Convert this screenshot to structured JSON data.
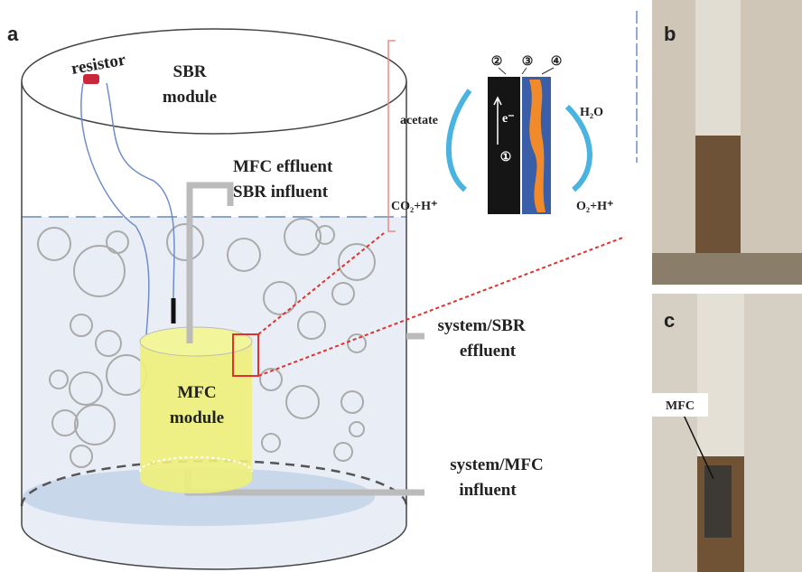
{
  "panel_labels": {
    "a": "a",
    "b": "b",
    "c": "c"
  },
  "diagram": {
    "resistor": "resistor",
    "sbr_module": [
      "SBR",
      "module"
    ],
    "mfc_effluent": [
      "MFC effluent",
      "SBR influent"
    ],
    "system_sbr": [
      "system/SBR",
      "effluent"
    ],
    "system_mfc": [
      "system/MFC",
      "influent"
    ],
    "mfc_module": [
      "MFC",
      "module"
    ]
  },
  "inset": {
    "numbers": [
      "②",
      "③",
      "④",
      "①"
    ],
    "acetate": "acetate",
    "h2o": "H₂O",
    "co2": "CO₂+H⁺",
    "o2": "O₂+H⁺",
    "electron": "e⁻"
  },
  "photo_c_label": "MFC"
}
